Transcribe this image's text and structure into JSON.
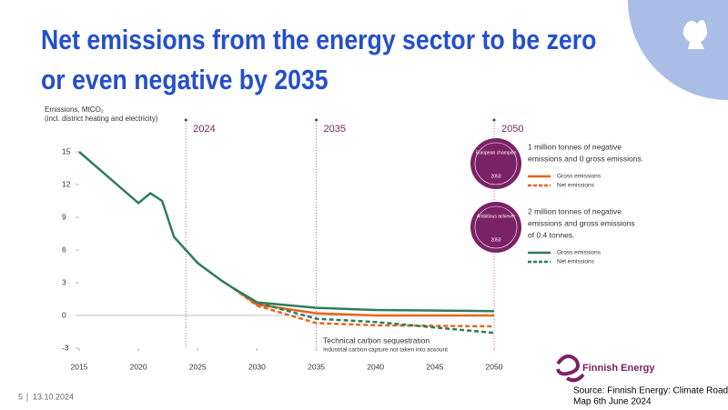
{
  "title": "Net emissions from the energy sector to be zero or even negative by 2035",
  "footer": {
    "page": "5",
    "date": "13.10.2024"
  },
  "source": [
    "Source: Finnish Energy: Climate Road",
    "Map 6th June 2024"
  ],
  "logo_text": "Finnish Energy",
  "chart_data": {
    "type": "line",
    "y_label": [
      "Emissions, MtCO₂",
      "(incl. district heating and electricity)"
    ],
    "xlim": [
      2015,
      2050
    ],
    "xticks": [
      2015,
      2020,
      2025,
      2030,
      2035,
      2040,
      2045,
      2050
    ],
    "ylim": [
      -3,
      16
    ],
    "yticks": [
      -3,
      0,
      3,
      6,
      9,
      12,
      15
    ],
    "milestones": [
      2024,
      2035,
      2050
    ],
    "annotation": [
      "Technical carbon sequestration",
      "Industrial carbon capture not taken into account"
    ],
    "scenarios": [
      {
        "badge": "European champion",
        "badge_year": "2050",
        "note": [
          "1 million tonnes of negative",
          "emissions and 0 gross emissions."
        ]
      },
      {
        "badge": "Ambitious achiever",
        "badge_year": "2050",
        "note": [
          "2 million tonnes of negative",
          "emissions and gross emissions",
          "of 0.4 tonnes."
        ]
      }
    ],
    "series": [
      {
        "name": "Gross emissions",
        "color": "#e8641e",
        "dashed": false,
        "x": [
          2028,
          2030,
          2035,
          2040,
          2050
        ],
        "values": [
          2.5,
          1.0,
          0.2,
          0,
          0
        ]
      },
      {
        "name": "Net emissions",
        "color": "#e8641e",
        "dashed": true,
        "x": [
          2028,
          2030,
          2035,
          2040,
          2050
        ],
        "values": [
          2.5,
          0.9,
          -0.7,
          -0.9,
          -1.0
        ]
      },
      {
        "name": "Gross emissions",
        "color": "#2e7d5b",
        "dashed": false,
        "x": [
          2015,
          2020,
          2021,
          2022,
          2023,
          2025,
          2027,
          2028,
          2030,
          2035,
          2040,
          2050
        ],
        "values": [
          15,
          10.3,
          11.2,
          10.5,
          7.2,
          4.8,
          3.2,
          2.5,
          1.2,
          0.7,
          0.5,
          0.4
        ]
      },
      {
        "name": "Net emissions",
        "color": "#2e7d5b",
        "dashed": true,
        "x": [
          2028,
          2030,
          2035,
          2040,
          2050
        ],
        "values": [
          2.5,
          1.2,
          -0.3,
          -0.6,
          -1.6
        ]
      }
    ]
  }
}
